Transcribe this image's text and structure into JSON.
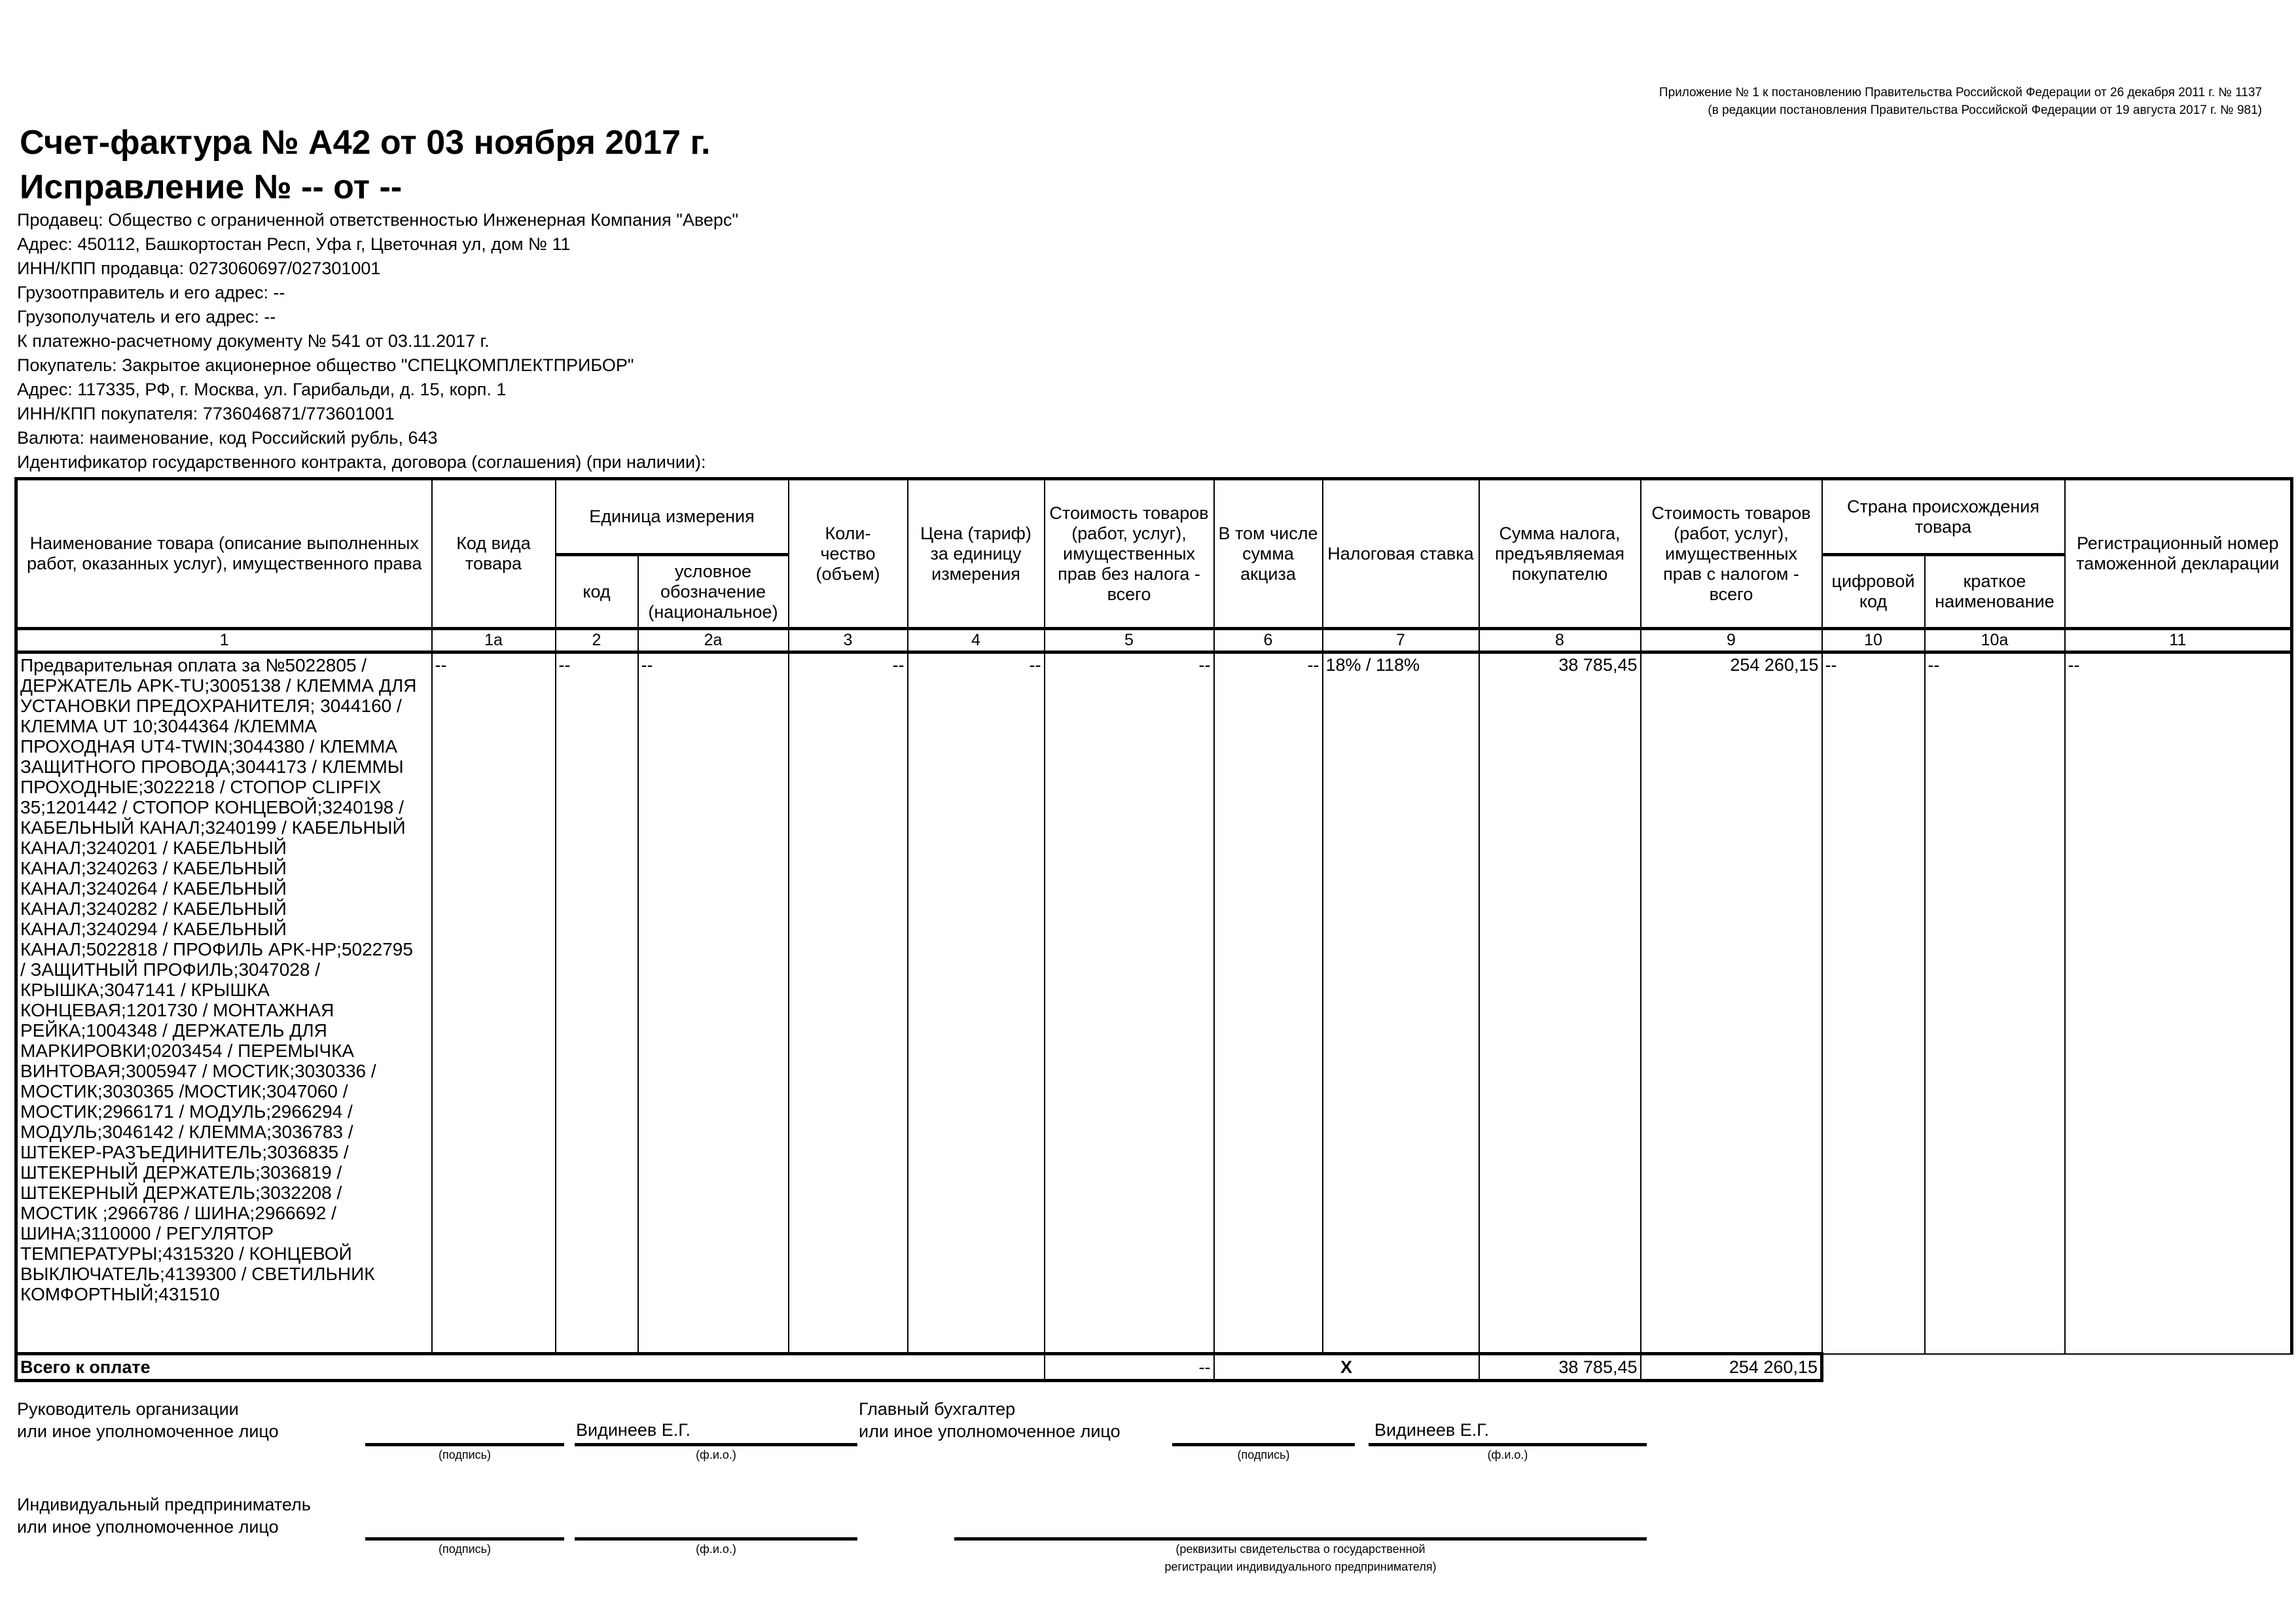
{
  "appendix_note": {
    "line1": "Приложение № 1 к постановлению Правительства Российской Федерации от 26 декабря 2011 г. № 1137",
    "line2": "(в редакции постановления Правительства Российской Федерации от 19 августа 2017 г. № 981)"
  },
  "title": "Счет-фактура № А42 от 03 ноября 2017 г.",
  "correction": "Исправление № -- от --",
  "info": [
    "Продавец: Общество с ограниченной ответственностью Инженерная Компания \"Аверс\"",
    "Адрес: 450112, Башкортостан Респ, Уфа г, Цветочная ул, дом № 11",
    "ИНН/КПП продавца: 0273060697/027301001",
    "Грузоотправитель и его адрес: --",
    "Грузополучатель и его адрес: --",
    "К платежно-расчетному документу № 541 от 03.11.2017 г.",
    "Покупатель: Закрытое акционерное общество \"СПЕЦКОМПЛЕКТПРИБОР\"",
    "Адрес: 117335, РФ, г. Москва, ул. Гарибальди, д. 15, корп. 1",
    "ИНН/КПП покупателя: 7736046871/773601001",
    "Валюта: наименование, код Российский рубль, 643",
    "Идентификатор государственного контракта, договора (соглашения) (при наличии):"
  ],
  "table": {
    "headers": {
      "name": "Наименование товара (описание выполненных работ, оказанных услуг), имущественного права",
      "kind_code": "Код вида товара",
      "unit": "Единица измерения",
      "unit_code": "код",
      "unit_symbol": "условное обозначение (национальное)",
      "qty": "Коли-\nчество (объем)",
      "price": "Цена (тариф) за единицу измерения",
      "cost_no_tax": "Стоимость товаров (работ, услуг), имущественных прав без налога - всего",
      "excise": "В том числе сумма акциза",
      "tax_rate": "Налоговая ставка",
      "tax_sum": "Сумма налога, предъявляемая покупателю",
      "cost_with_tax": "Стоимость товаров (работ, услуг), имущественных прав с налогом - всего",
      "country": "Страна происхождения товара",
      "country_code": "цифровой код",
      "country_name": "краткое наименование",
      "customs": "Регистрационный номер таможенной декларации"
    },
    "column_numbers": [
      "1",
      "1а",
      "2",
      "2а",
      "3",
      "4",
      "5",
      "6",
      "7",
      "8",
      "9",
      "10",
      "10а",
      "11"
    ],
    "row": {
      "name": "Предварительная оплата за №5022805 /\nДЕРЖАТЕЛЬ APK-TU;3005138 / КЛЕММА ДЛЯ\nУСТАНОВКИ ПРЕДОХРАНИТЕЛЯ; 3044160 /\nКЛЕММА UT 10;3044364 /КЛЕММА\nПРОХОДНАЯ UT4-TWIN;3044380 / КЛЕММА\nЗАЩИТНОГО ПРОВОДА;3044173 / КЛЕММЫ\nПРОХОДНЫЕ;3022218 / СТОПОР CLIPFIX\n35;1201442 / СТОПОР КОНЦЕВОЙ;3240198 /\nКАБЕЛЬНЫЙ КАНАЛ;3240199 / КАБЕЛЬНЫЙ\nКАНАЛ;3240201 / КАБЕЛЬНЫЙ\nКАНАЛ;3240263 / КАБЕЛЬНЫЙ\nКАНАЛ;3240264 / КАБЕЛЬНЫЙ\nКАНАЛ;3240282 / КАБЕЛЬНЫЙ\nКАНАЛ;3240294 / КАБЕЛЬНЫЙ\nКАНАЛ;5022818 / ПРОФИЛЬ APK-HP;5022795\n/ ЗАЩИТНЫЙ ПРОФИЛЬ;3047028 /\nКРЫШКА;3047141 / КРЫШКА\nКОНЦЕВАЯ;1201730 / МОНТАЖНАЯ\nРЕЙКА;1004348 / ДЕРЖАТЕЛЬ ДЛЯ\nМАРКИРОВКИ;0203454 / ПЕРЕМЫЧКА\nВИНТОВАЯ;3005947 / МОСТИК;3030336 /\nМОСТИК;3030365 /МОСТИК;3047060 /\nМОСТИК;2966171 / МОДУЛЬ;2966294 /\nМОДУЛЬ;3046142 / КЛЕММА;3036783 /\nШТЕКЕР-РАЗЪЕДИНИТЕЛЬ;3036835 /\nШТЕКЕРНЫЙ ДЕРЖАТЕЛЬ;3036819 /\nШТЕКЕРНЫЙ ДЕРЖАТЕЛЬ;3032208 /\nМОСТИК ;2966786 / ШИНА;2966692 /\nШИНА;3110000 / РЕГУЛЯТОР\nТЕМПЕРАТУРЫ;4315320 / КОНЦЕВОЙ\nВЫКЛЮЧАТЕЛЬ;4139300 / СВЕТИЛЬНИК\nКОМФОРТНЫЙ;431510",
      "kind_code": "--",
      "unit_code": "--",
      "unit_symbol": "--",
      "qty": "--",
      "price": "--",
      "cost_no_tax": "--",
      "excise": "--",
      "tax_rate": "18% / 118%",
      "tax_sum": "38 785,45",
      "cost_with_tax": "254 260,15",
      "country_code": "--",
      "country_name": "--",
      "customs": "--"
    },
    "total": {
      "label": "Всего к оплате",
      "cost_no_tax": "--",
      "excise_rate": "X",
      "tax_sum": "38 785,45",
      "cost_with_tax": "254 260,15"
    }
  },
  "signatures": {
    "head_label1": "Руководитель организации",
    "head_label2": "или иное уполномоченное лицо",
    "head_name": "Видинеев Е.Г.",
    "accountant_label1": "Главный бухгалтер",
    "accountant_label2": "или иное уполномоченное лицо",
    "accountant_name": "Видинеев Е.Г.",
    "ip_label1": "Индивидуальный предприниматель",
    "ip_label2": "или иное уполномоченное лицо",
    "caption_signature": "(подпись)",
    "caption_fio": "(ф.и.о.)",
    "caption_registration1": "(реквизиты свидетельства о государственной",
    "caption_registration2": "регистрации индивидуального предпринимателя)"
  }
}
